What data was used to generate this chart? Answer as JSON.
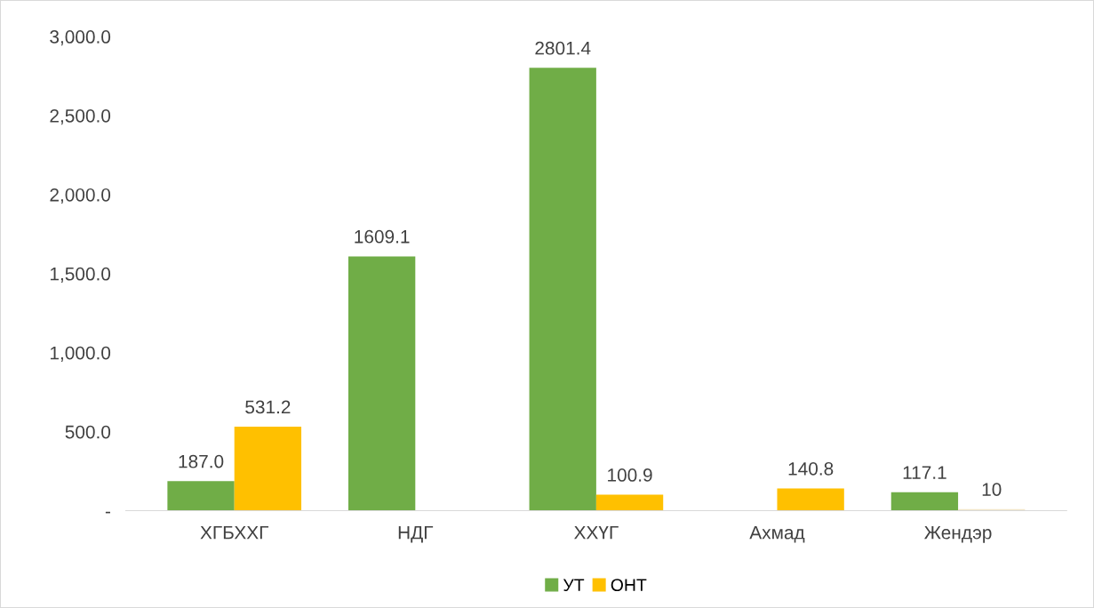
{
  "chart_data": {
    "type": "bar",
    "categories": [
      "ХГБХХГ",
      "НДГ",
      "ХХҮГ",
      "Ахмад",
      "Жендэр"
    ],
    "series": [
      {
        "name": "УТ",
        "color": "#70ad47",
        "values": [
          187.0,
          1609.1,
          2801.4,
          null,
          117.1
        ],
        "value_labels": [
          "187.0",
          "1609.1",
          "2801.4",
          null,
          "117.1"
        ]
      },
      {
        "name": "ОНТ",
        "color": "#ffc000",
        "colors": [
          "#ffc000",
          "#ffc000",
          "#ffc000",
          "#ffc000",
          "#f2e6c9"
        ],
        "values": [
          531.2,
          null,
          100.9,
          140.8,
          10
        ],
        "value_labels": [
          "531.2",
          null,
          "100.9",
          "140.8",
          "10"
        ]
      }
    ],
    "ylim": [
      0,
      3000
    ],
    "yticks": [
      {
        "value": 0,
        "label": "-"
      },
      {
        "value": 500,
        "label": "500.0"
      },
      {
        "value": 1000,
        "label": "1,000.0"
      },
      {
        "value": 1500,
        "label": "1,500.0"
      },
      {
        "value": 2000,
        "label": "2,000.0"
      },
      {
        "value": 2500,
        "label": "2,500.0"
      },
      {
        "value": 3000,
        "label": "3,000.0"
      }
    ],
    "grid": false,
    "legend": "bottom"
  }
}
